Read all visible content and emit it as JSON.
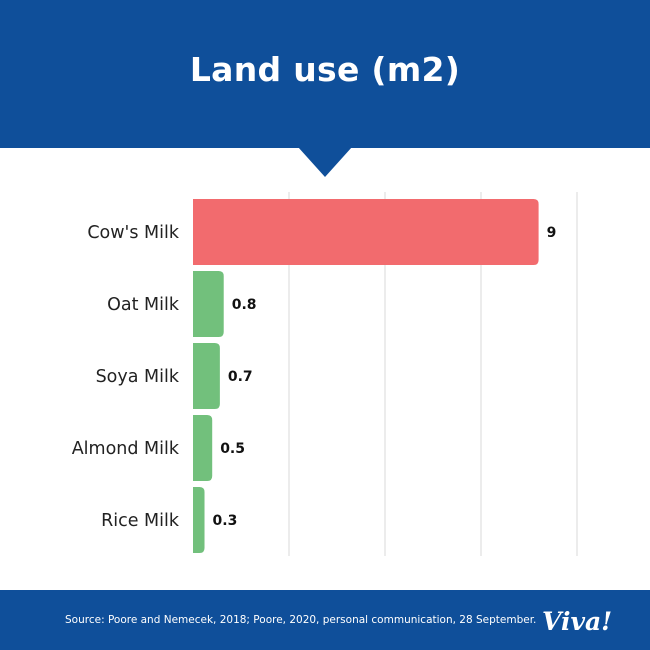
{
  "header": {
    "title": "Land use (m2)"
  },
  "footer": {
    "source": "Source:  Poore and Nemecek, 2018; Poore, 2020, personal communication, 28 September.",
    "logo_text": "Viva!"
  },
  "colors": {
    "brand_blue": "#0f4f9a",
    "bar_red": "#f26b6e",
    "bar_green": "#72c07c",
    "grid": "#d8d8d8"
  },
  "chart_data": {
    "type": "bar",
    "orientation": "horizontal",
    "title": "Land use (m2)",
    "categories": [
      "Cow's Milk",
      "Oat Milk",
      "Soya Milk",
      "Almond Milk",
      "Rice Milk"
    ],
    "values": [
      9,
      0.8,
      0.7,
      0.5,
      0.3
    ],
    "value_labels": [
      "9",
      "0.8",
      "0.7",
      "0.5",
      "0.3"
    ],
    "bar_colors": [
      "#f26b6e",
      "#72c07c",
      "#72c07c",
      "#72c07c",
      "#72c07c"
    ],
    "xlim": [
      0,
      10
    ],
    "grid": true,
    "gridline_values": [
      2.5,
      5,
      7.5,
      10
    ],
    "xlabel": "",
    "ylabel": ""
  }
}
